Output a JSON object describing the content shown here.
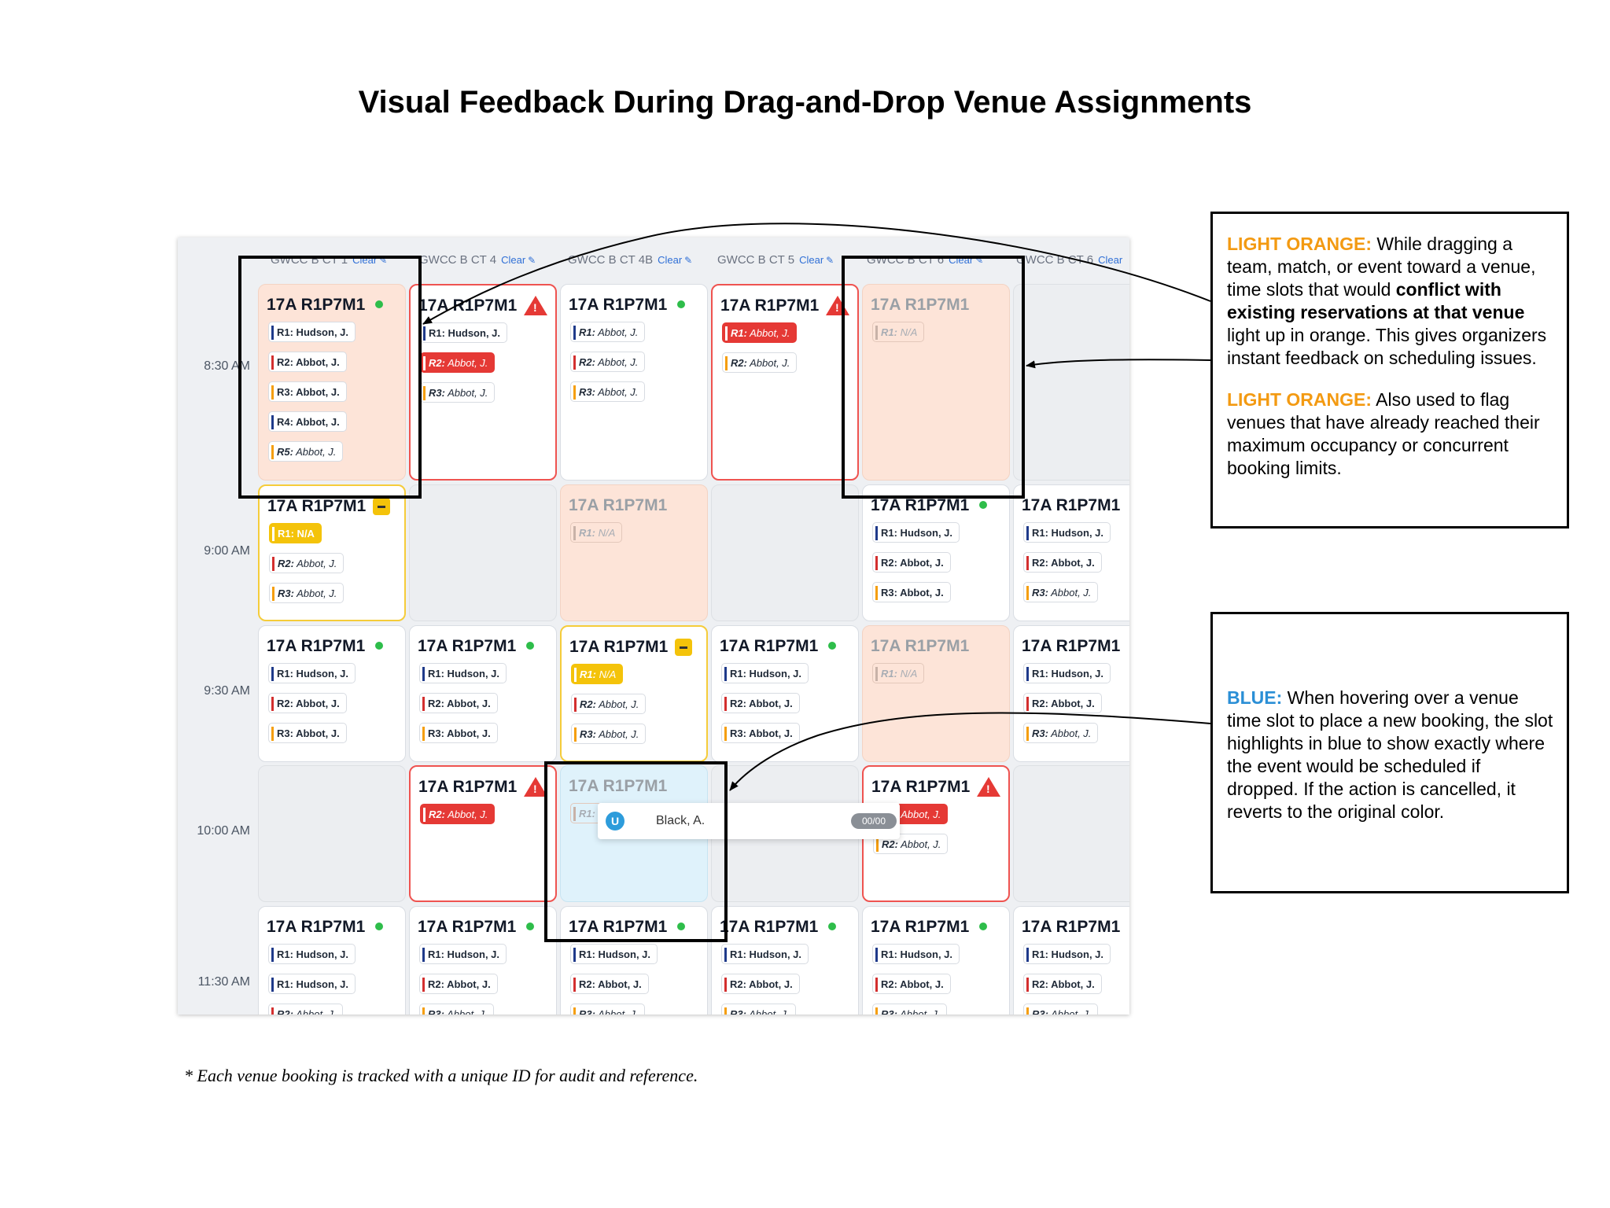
{
  "title": "Visual Feedback During Drag-and-Drop Venue Assignments",
  "footnote": "* Each venue booking is tracked with a unique ID for audit and reference.",
  "columns": [
    {
      "name": "GWCC B CT 1",
      "clear": "Clear"
    },
    {
      "name": "GWCC B CT 4",
      "clear": "Clear"
    },
    {
      "name": "GWCC B CT 4B",
      "clear": "Clear"
    },
    {
      "name": "GWCC B CT 5",
      "clear": "Clear"
    },
    {
      "name": "GWCC B CT 6",
      "clear": "Clear"
    },
    {
      "name": "GWCC B CT 6",
      "clear": "Clear"
    }
  ],
  "times": [
    "8:30 AM",
    "9:00 AM",
    "9:30 AM",
    "10:00 AM",
    "11:30 AM"
  ],
  "match": "17A R1P7M1",
  "roles": {
    "r1_hudson": "R1: Hudson, J.",
    "r1_na": "R1: N/A",
    "r1_abbot": "R1: Abbot, J.",
    "r2_abbot": "R2: Abbot, J.",
    "r3_abbot": "R3: Abbot, J.",
    "r4_abbot": "R4: Abbot, J.",
    "r5_abbot": "R5: Abbot, J.",
    "r1_prefix": "R1:",
    "r2_prefix": "R2:",
    "r3_prefix": "R3:",
    "r5_prefix": "R5:",
    "abbot": "Abbot, J.",
    "na": "N/A"
  },
  "drag_item": {
    "avatar": "U",
    "name": "Black, A.",
    "count": "00/00"
  },
  "notes": {
    "orange1_label": "LIGHT ORANGE:",
    "orange1_text1": " While dragging a team, match, or event toward a venue, time slots that would ",
    "orange1_bold": "conflict with existing reservations at that venue",
    "orange1_text2": " light up in orange. This gives organizers instant feedback on scheduling issues.",
    "orange2_label": "LIGHT ORANGE:",
    "orange2_text": " Also used to flag venues that have already reached their maximum occupancy or concurrent booking limits.",
    "blue_label": "BLUE:",
    "blue_text": " When hovering over a venue time slot to place a new booking, the slot highlights in blue to show exactly where the event would be scheduled if dropped. If the action is cancelled, it reverts to the original color."
  },
  "colors": {
    "light_orange": "#fde4d8",
    "blue": "#dff2fb",
    "conflict_red": "#e53935",
    "ok_green": "#2ebd4a",
    "warn_yellow": "#f4c30a",
    "label_orange": "#f39a12",
    "label_blue": "#2b8fd6"
  }
}
